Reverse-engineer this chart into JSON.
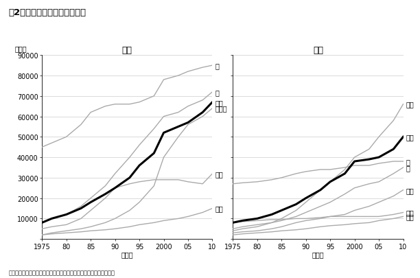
{
  "title": "図2　部位別がん罹患数の推移",
  "source": "出典：国立研究開発法人国立がん研究センターがん対策情報センター",
  "ylabel": "（人）",
  "xlabel": "（年）",
  "years": [
    1975,
    1977,
    1980,
    1983,
    1985,
    1988,
    1990,
    1993,
    1995,
    1998,
    2000,
    2003,
    2005,
    2008,
    2010
  ],
  "male_title": "男性",
  "male_series": {
    "胃": [
      45000,
      47000,
      50000,
      56000,
      62000,
      65000,
      66000,
      66000,
      67000,
      70000,
      78000,
      80000,
      82000,
      84000,
      85000
    ],
    "肺": [
      8000,
      10000,
      12000,
      16000,
      20000,
      26000,
      32000,
      40000,
      46000,
      54000,
      60000,
      62000,
      65000,
      68000,
      72000
    ],
    "大腸": [
      8000,
      10000,
      12000,
      15000,
      18000,
      22000,
      25000,
      30000,
      36000,
      42000,
      52000,
      55000,
      57000,
      62000,
      67000
    ],
    "前立腺": [
      2000,
      3000,
      4000,
      5000,
      6000,
      8000,
      10000,
      14000,
      18000,
      26000,
      40000,
      50000,
      56000,
      60000,
      64000
    ],
    "肝臓": [
      5000,
      6000,
      7000,
      10000,
      14000,
      20000,
      25000,
      27000,
      28000,
      29000,
      29000,
      29000,
      28000,
      27000,
      32000
    ],
    "膵臓": [
      2000,
      2500,
      3000,
      3500,
      4000,
      4500,
      5000,
      6000,
      7000,
      8000,
      9000,
      10000,
      11000,
      13000,
      15000
    ]
  },
  "male_bold": "大腸",
  "female_title": "女性",
  "female_series": {
    "乳房": [
      4000,
      5000,
      6000,
      8000,
      10000,
      14000,
      18000,
      24000,
      28000,
      34000,
      40000,
      44000,
      50000,
      58000,
      66000
    ],
    "大腸": [
      8000,
      9000,
      10000,
      12000,
      14000,
      17000,
      20000,
      24000,
      28000,
      32000,
      38000,
      39000,
      40000,
      44000,
      50000
    ],
    "胃": [
      27000,
      27500,
      28000,
      29000,
      30000,
      32000,
      33000,
      34000,
      34000,
      35000,
      36000,
      36000,
      37000,
      38000,
      38000
    ],
    "肺": [
      5000,
      6000,
      7000,
      8000,
      9000,
      11000,
      13000,
      16000,
      18000,
      22000,
      25000,
      27000,
      28000,
      32000,
      35000
    ],
    "子宮": [
      8000,
      8500,
      9000,
      9500,
      9500,
      10000,
      10000,
      10500,
      11000,
      12000,
      14000,
      16000,
      18000,
      21000,
      24000
    ],
    "肝臓": [
      3000,
      3500,
      4000,
      5000,
      6000,
      8000,
      9000,
      10000,
      11000,
      11000,
      11000,
      11000,
      11000,
      12000,
      13000
    ],
    "膵臓": [
      2000,
      2500,
      3000,
      3500,
      4000,
      4500,
      5000,
      6000,
      6500,
      7000,
      7500,
      8000,
      9000,
      10000,
      11000
    ]
  },
  "female_bold": "大腸",
  "gray_color": "#aaaaaa",
  "black_color": "#000000",
  "bg_color": "#ffffff",
  "tick_years": [
    1975,
    1980,
    1985,
    1990,
    1995,
    2000,
    2005,
    2010
  ],
  "tick_labels": [
    "1975",
    "80",
    "85",
    "90",
    "95",
    "2000",
    "05",
    "10"
  ],
  "ylim": [
    0,
    90000
  ],
  "yticks": [
    0,
    10000,
    20000,
    30000,
    40000,
    50000,
    60000,
    70000,
    80000,
    90000
  ],
  "ytick_labels": [
    "",
    "10000",
    "20000",
    "30000",
    "40000",
    "50000",
    "60000",
    "70000",
    "80000",
    "90000"
  ]
}
